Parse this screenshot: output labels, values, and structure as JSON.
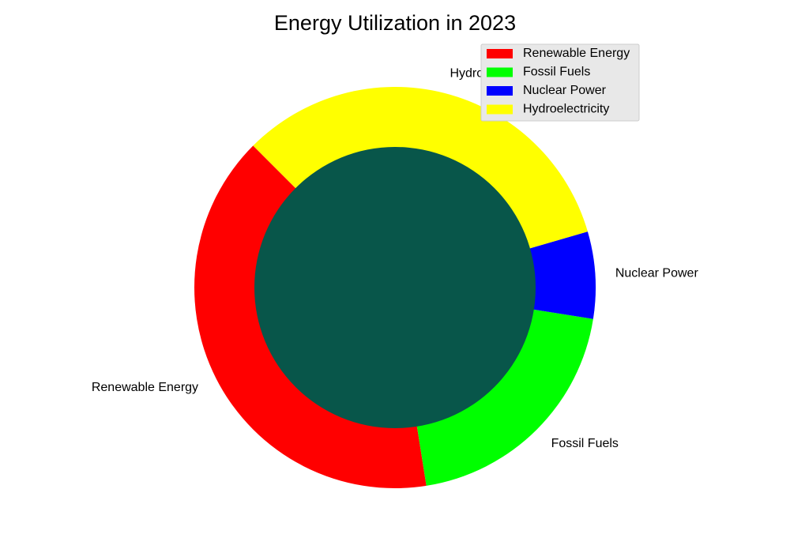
{
  "chart_data": {
    "type": "pie",
    "title": "Energy Utilization in 2023",
    "categories": [
      "Renewable Energy",
      "Fossil Fuels",
      "Nuclear Power",
      "Hydroelectricity"
    ],
    "values": [
      40,
      20,
      7,
      33
    ],
    "colors": [
      "#ff0000",
      "#00ff00",
      "#0000ff",
      "#ffff00"
    ],
    "center_color": "#08564a",
    "donut": true,
    "legend": {
      "position": "top-right",
      "entries": [
        "Renewable Energy",
        "Fossil Fuels",
        "Nuclear Power",
        "Hydroelectricity"
      ]
    }
  }
}
